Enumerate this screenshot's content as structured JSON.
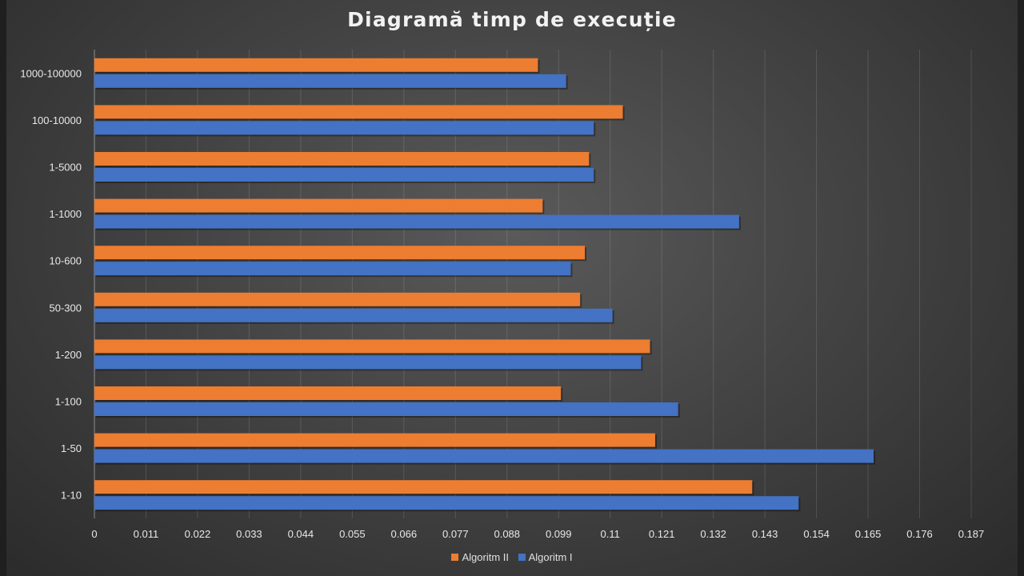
{
  "chart_data": {
    "type": "bar",
    "orientation": "horizontal",
    "title": "Diagramă timp de execuție",
    "categories": [
      "1-10",
      "1-50",
      "1-100",
      "1-200",
      "50-300",
      "10-600",
      "1-1000",
      "1-5000",
      "100-10000",
      "1000-100000"
    ],
    "series": [
      {
        "name": "Algoritm II",
        "color": "#ed7d31",
        "values": [
          0.1403,
          0.1196,
          0.0995,
          0.1185,
          0.1036,
          0.1046,
          0.0956,
          0.1055,
          0.1127,
          0.0946
        ]
      },
      {
        "name": "Algoritm I",
        "color": "#4472c4",
        "values": [
          0.1502,
          0.1662,
          0.1245,
          0.1166,
          0.1105,
          0.1016,
          0.1375,
          0.1065,
          0.1065,
          0.1006
        ]
      }
    ],
    "xlim": [
      0,
      0.187
    ],
    "xticks": [
      "0",
      "0.011",
      "0.022",
      "0.033",
      "0.044",
      "0.055",
      "0.066",
      "0.077",
      "0.088",
      "0.099",
      "0.11",
      "0.121",
      "0.132",
      "0.143",
      "0.154",
      "0.165",
      "0.176",
      "0.187"
    ],
    "grid": true,
    "legend_position": "bottom"
  }
}
